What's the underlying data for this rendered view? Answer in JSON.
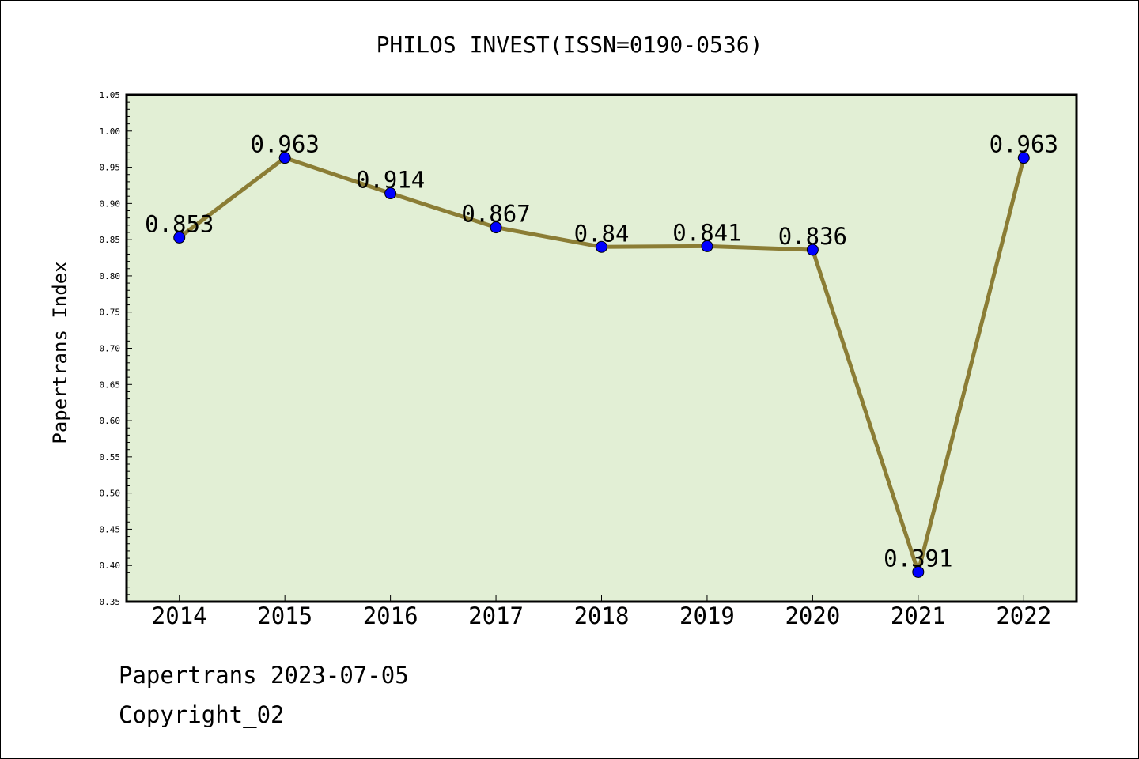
{
  "chart_data": {
    "type": "line",
    "title": "PHILOS INVEST(ISSN=0190-0536)",
    "xlabel": "",
    "ylabel": "Papertrans Index",
    "categories": [
      "2014",
      "2015",
      "2016",
      "2017",
      "2018",
      "2019",
      "2020",
      "2021",
      "2022"
    ],
    "series": [
      {
        "values": [
          0.853,
          0.963,
          0.914,
          0.867,
          0.84,
          0.841,
          0.836,
          0.391,
          0.963
        ],
        "data_labels": [
          "0.853",
          "0.963",
          "0.914",
          "0.867",
          "0.84",
          "0.841",
          "0.836",
          "0.391",
          "0.963"
        ]
      }
    ],
    "ylim": [
      0.35,
      1.05
    ],
    "yticks": [
      "0.35",
      "0.40",
      "0.45",
      "0.50",
      "0.55",
      "0.60",
      "0.65",
      "0.70",
      "0.75",
      "0.80",
      "0.85",
      "0.90",
      "0.95",
      "1.00",
      "1.05"
    ],
    "grid": false,
    "colors": {
      "plot_background": "#e2efd5",
      "line": "#8b7d35",
      "marker": "#0000ff"
    }
  },
  "footer": {
    "line1": "Papertrans 2023-07-05",
    "line2": "Copyright_02"
  }
}
